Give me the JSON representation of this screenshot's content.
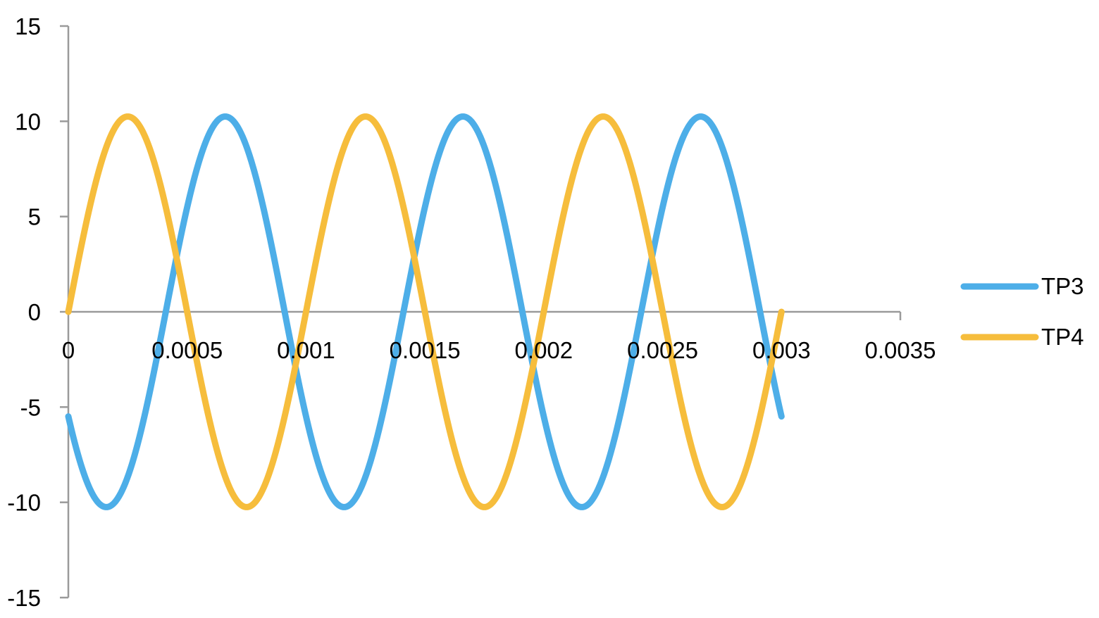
{
  "chart_data": {
    "type": "line",
    "title": "",
    "xlabel": "",
    "ylabel": "",
    "xlim": [
      0,
      0.0035
    ],
    "ylim": [
      -15,
      15
    ],
    "x_ticks": [
      0,
      0.0005,
      0.001,
      0.0015,
      0.002,
      0.0025,
      0.003,
      0.0035
    ],
    "x_tick_labels": [
      "0",
      "0.0005",
      "0.001",
      "0.0015",
      "0.002",
      "0.0025",
      "0.003",
      "0.0035"
    ],
    "y_ticks": [
      15,
      10,
      5,
      0,
      -5,
      -10,
      -15
    ],
    "y_tick_labels": [
      "15",
      "10",
      "5",
      "0",
      "-5",
      "-10",
      "-15"
    ],
    "grid": false,
    "legend_position": "right",
    "series": [
      {
        "name": "TP3",
        "color": "#4daee8",
        "amplitude": 10.25,
        "period": 0.001,
        "x_start": 0,
        "x_end": 0.003,
        "peaks_x": [
          0.00066,
          0.00166,
          0.00266
        ],
        "troughs_x": [
          0.00016,
          0.00116,
          0.00216
        ],
        "values": [
          [
            0,
            -6.0
          ],
          [
            0.00016,
            -10.25
          ],
          [
            0.00041,
            0
          ],
          [
            0.00066,
            10.25
          ],
          [
            0.00091,
            0
          ],
          [
            0.00116,
            -10.25
          ],
          [
            0.00141,
            0
          ],
          [
            0.00166,
            10.25
          ],
          [
            0.00191,
            0
          ],
          [
            0.00216,
            -10.25
          ],
          [
            0.00241,
            0
          ],
          [
            0.00266,
            10.25
          ],
          [
            0.00291,
            0
          ],
          [
            0.003,
            -6.0
          ]
        ]
      },
      {
        "name": "TP4",
        "color": "#f6bd3c",
        "amplitude": 10.25,
        "period": 0.001,
        "x_start": 0,
        "x_end": 0.003,
        "peaks_x": [
          0.00025,
          0.00125,
          0.00225
        ],
        "troughs_x": [
          0.00075,
          0.00175,
          0.00275
        ],
        "values": [
          [
            0,
            0
          ],
          [
            0.00025,
            10.25
          ],
          [
            0.0005,
            0
          ],
          [
            0.00075,
            -10.25
          ],
          [
            0.001,
            0
          ],
          [
            0.00125,
            10.25
          ],
          [
            0.0015,
            0
          ],
          [
            0.00175,
            -10.25
          ],
          [
            0.002,
            0
          ],
          [
            0.00225,
            10.25
          ],
          [
            0.0025,
            0
          ],
          [
            0.00275,
            -10.25
          ],
          [
            0.003,
            0
          ]
        ]
      }
    ]
  }
}
